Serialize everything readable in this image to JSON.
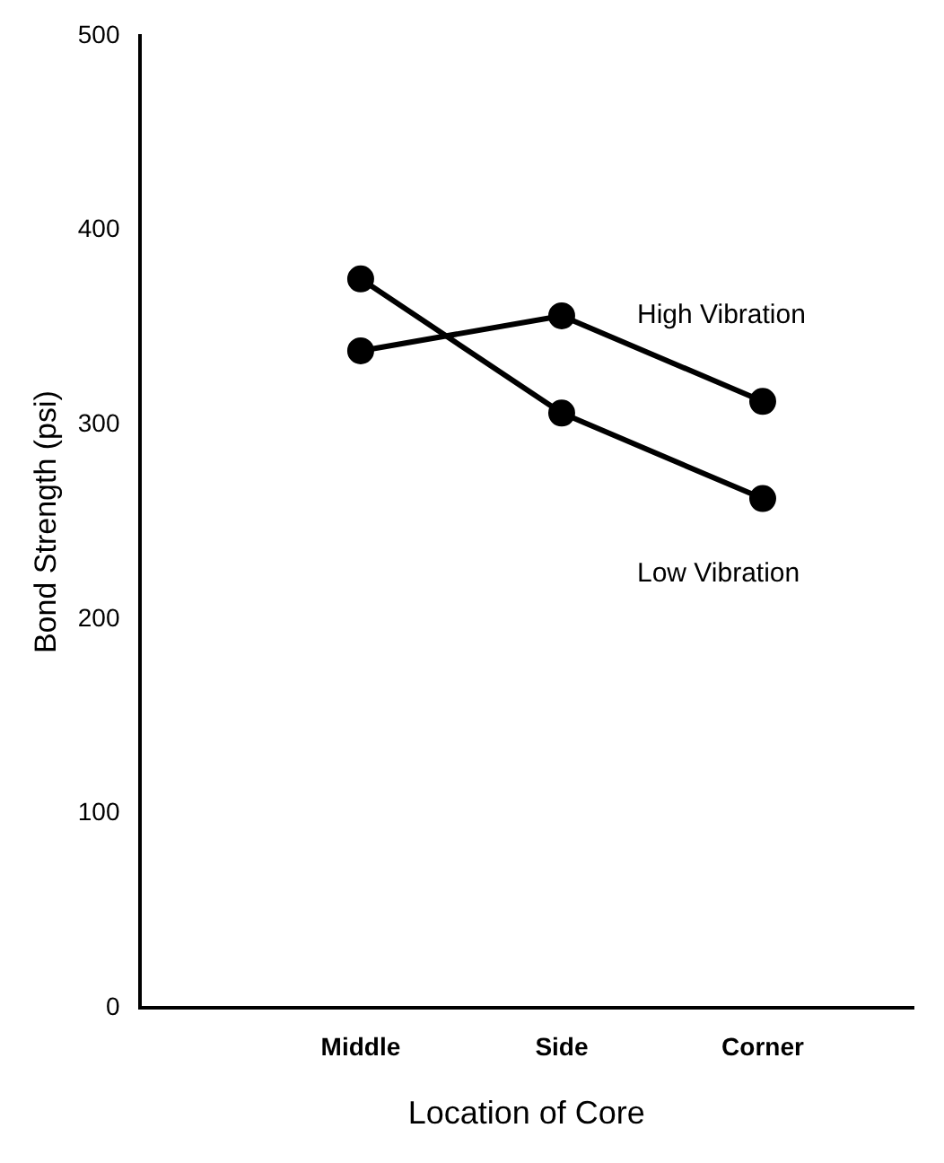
{
  "chart_data": {
    "type": "line",
    "xlabel": "Location of Core",
    "ylabel": "Bond Strength (psi)",
    "categories": [
      "Middle",
      "Side",
      "Corner"
    ],
    "series": [
      {
        "name": "High Vibration",
        "color": "#000000",
        "values": [
          338,
          356,
          312
        ]
      },
      {
        "name": "Low Vibration",
        "color": "#000000",
        "values": [
          375,
          306,
          262
        ]
      }
    ],
    "ylim": [
      0,
      500
    ],
    "yticks": [
      0,
      100,
      200,
      300,
      400,
      500
    ],
    "grid": false,
    "legend": false,
    "marker": "circle",
    "line_style": "solid"
  }
}
